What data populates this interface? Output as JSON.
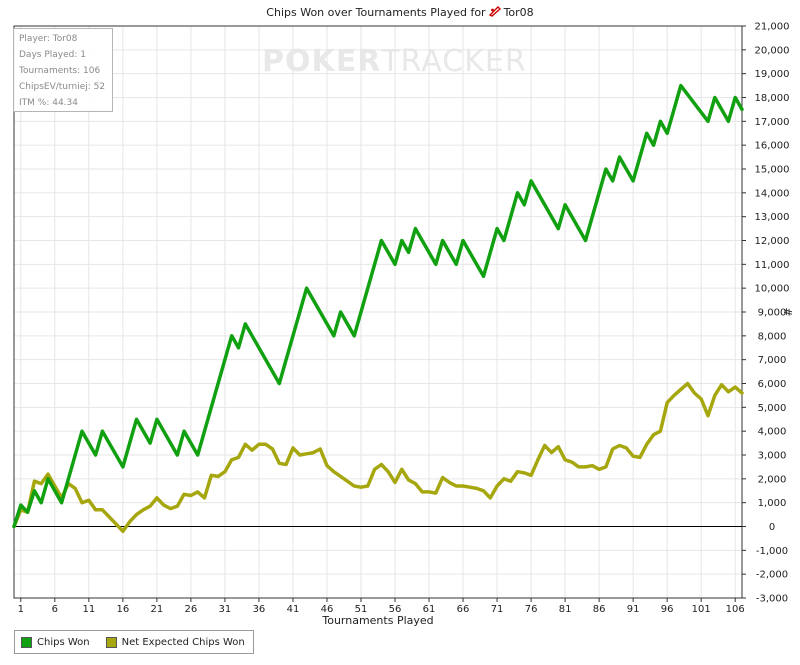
{
  "title_prefix": "Chips Won over Tournaments Played for",
  "title_player": "Tor08",
  "watermark": {
    "poker": "POKER",
    "tracker": "TRACKER"
  },
  "info_box": {
    "rows": [
      "Player: Tor08",
      "Days Played: 1",
      "Tournaments: 106",
      "ChipsEV/turniej: 52",
      "ITM %: 44.34"
    ]
  },
  "colors": {
    "chips_won": "#10a010",
    "net_expected": "#a6a60e",
    "grid": "#e6e6e6",
    "axis": "#333333"
  },
  "legend": {
    "chips_won": "Chips Won",
    "net_expected": "Net Expected Chips Won"
  },
  "chart_data": {
    "type": "line",
    "title": "Chips Won over Tournaments Played for Tor08",
    "xlabel": "Tournaments Played",
    "ylabel": "#",
    "xlim": [
      0,
      106
    ],
    "ylim": [
      -3000,
      21000
    ],
    "x_ticks": [
      1,
      6,
      11,
      16,
      21,
      26,
      31,
      36,
      41,
      46,
      51,
      56,
      61,
      66,
      71,
      76,
      81,
      86,
      91,
      96,
      101,
      106
    ],
    "y_ticks": [
      -3000,
      -2000,
      -1000,
      0,
      1000,
      2000,
      3000,
      4000,
      5000,
      6000,
      7000,
      8000,
      9000,
      10000,
      11000,
      12000,
      13000,
      14000,
      15000,
      16000,
      17000,
      18000,
      19000,
      20000,
      21000
    ],
    "y_tick_labels": [
      "-3,000",
      "-2,000",
      "-1,000",
      "0",
      "1,000",
      "2,000",
      "3,000",
      "4,000",
      "5,000",
      "6,000",
      "7,000",
      "8,000",
      "9,000",
      "10,000",
      "11,000",
      "12,000",
      "13,000",
      "14,000",
      "15,000",
      "16,000",
      "17,000",
      "18,000",
      "19,000",
      "20,000",
      "21,000"
    ],
    "grid": true,
    "legend_position": "bottom-left",
    "series": [
      {
        "name": "Chips Won",
        "points": [
          [
            0,
            0
          ],
          [
            1,
            900
          ],
          [
            2,
            600
          ],
          [
            3,
            1500
          ],
          [
            4,
            1000
          ],
          [
            5,
            2000
          ],
          [
            7,
            1000
          ],
          [
            10,
            4000
          ],
          [
            12,
            3000
          ],
          [
            13,
            4000
          ],
          [
            16,
            2500
          ],
          [
            18,
            4500
          ],
          [
            20,
            3500
          ],
          [
            21,
            4500
          ],
          [
            24,
            3000
          ],
          [
            25,
            4000
          ],
          [
            27,
            3000
          ],
          [
            32,
            8000
          ],
          [
            33,
            7500
          ],
          [
            34,
            8500
          ],
          [
            39,
            6000
          ],
          [
            43,
            10000
          ],
          [
            47,
            8000
          ],
          [
            48,
            9000
          ],
          [
            50,
            8000
          ],
          [
            54,
            12000
          ],
          [
            56,
            11000
          ],
          [
            57,
            12000
          ],
          [
            58,
            11500
          ],
          [
            59,
            12500
          ],
          [
            62,
            11000
          ],
          [
            63,
            12000
          ],
          [
            65,
            11000
          ],
          [
            66,
            12000
          ],
          [
            69,
            10500
          ],
          [
            71,
            12500
          ],
          [
            72,
            12000
          ],
          [
            74,
            14000
          ],
          [
            75,
            13500
          ],
          [
            76,
            14500
          ],
          [
            80,
            12500
          ],
          [
            81,
            13500
          ],
          [
            84,
            12000
          ],
          [
            87,
            15000
          ],
          [
            88,
            14500
          ],
          [
            89,
            15500
          ],
          [
            91,
            14500
          ],
          [
            93,
            16500
          ],
          [
            94,
            16000
          ],
          [
            95,
            17000
          ],
          [
            96,
            16500
          ],
          [
            98,
            18500
          ],
          [
            102,
            17000
          ],
          [
            103,
            18000
          ],
          [
            105,
            17000
          ],
          [
            106,
            18000
          ],
          [
            107,
            17500
          ]
        ]
      },
      {
        "name": "Net Expected Chips Won",
        "points": [
          [
            0,
            0
          ],
          [
            1,
            700
          ],
          [
            2,
            600
          ],
          [
            3,
            1900
          ],
          [
            4,
            1800
          ],
          [
            5,
            2200
          ],
          [
            6,
            1700
          ],
          [
            7,
            1200
          ],
          [
            8,
            1800
          ],
          [
            9,
            1600
          ],
          [
            10,
            1000
          ],
          [
            11,
            1100
          ],
          [
            12,
            700
          ],
          [
            13,
            700
          ],
          [
            14,
            400
          ],
          [
            15,
            100
          ],
          [
            16,
            -200
          ],
          [
            17,
            200
          ],
          [
            18,
            500
          ],
          [
            19,
            700
          ],
          [
            20,
            850
          ],
          [
            21,
            1200
          ],
          [
            22,
            900
          ],
          [
            23,
            750
          ],
          [
            24,
            850
          ],
          [
            25,
            1350
          ],
          [
            26,
            1300
          ],
          [
            27,
            1450
          ],
          [
            28,
            1200
          ],
          [
            29,
            2150
          ],
          [
            30,
            2100
          ],
          [
            31,
            2300
          ],
          [
            32,
            2800
          ],
          [
            33,
            2900
          ],
          [
            34,
            3450
          ],
          [
            35,
            3200
          ],
          [
            36,
            3450
          ],
          [
            37,
            3450
          ],
          [
            38,
            3250
          ],
          [
            39,
            2650
          ],
          [
            40,
            2600
          ],
          [
            41,
            3300
          ],
          [
            42,
            3000
          ],
          [
            43,
            3050
          ],
          [
            44,
            3100
          ],
          [
            45,
            3250
          ],
          [
            46,
            2550
          ],
          [
            47,
            2300
          ],
          [
            48,
            2100
          ],
          [
            49,
            1900
          ],
          [
            50,
            1700
          ],
          [
            51,
            1650
          ],
          [
            52,
            1700
          ],
          [
            53,
            2400
          ],
          [
            54,
            2600
          ],
          [
            55,
            2300
          ],
          [
            56,
            1850
          ],
          [
            57,
            2400
          ],
          [
            58,
            1950
          ],
          [
            59,
            1800
          ],
          [
            60,
            1450
          ],
          [
            61,
            1450
          ],
          [
            62,
            1400
          ],
          [
            63,
            2050
          ],
          [
            64,
            1850
          ],
          [
            65,
            1700
          ],
          [
            66,
            1700
          ],
          [
            67,
            1650
          ],
          [
            68,
            1600
          ],
          [
            69,
            1500
          ],
          [
            70,
            1200
          ],
          [
            71,
            1700
          ],
          [
            72,
            2000
          ],
          [
            73,
            1900
          ],
          [
            74,
            2300
          ],
          [
            75,
            2250
          ],
          [
            76,
            2150
          ],
          [
            77,
            2800
          ],
          [
            78,
            3400
          ],
          [
            79,
            3100
          ],
          [
            80,
            3350
          ],
          [
            81,
            2800
          ],
          [
            82,
            2700
          ],
          [
            83,
            2500
          ],
          [
            84,
            2500
          ],
          [
            85,
            2550
          ],
          [
            86,
            2400
          ],
          [
            87,
            2500
          ],
          [
            88,
            3250
          ],
          [
            89,
            3400
          ],
          [
            90,
            3300
          ],
          [
            91,
            2950
          ],
          [
            92,
            2900
          ],
          [
            93,
            3450
          ],
          [
            94,
            3850
          ],
          [
            95,
            4000
          ],
          [
            96,
            5200
          ],
          [
            97,
            5500
          ],
          [
            98,
            5750
          ],
          [
            99,
            6000
          ],
          [
            100,
            5600
          ],
          [
            101,
            5350
          ],
          [
            102,
            4650
          ],
          [
            103,
            5500
          ],
          [
            104,
            5950
          ],
          [
            105,
            5650
          ],
          [
            106,
            5850
          ],
          [
            107,
            5600
          ]
        ]
      }
    ]
  }
}
